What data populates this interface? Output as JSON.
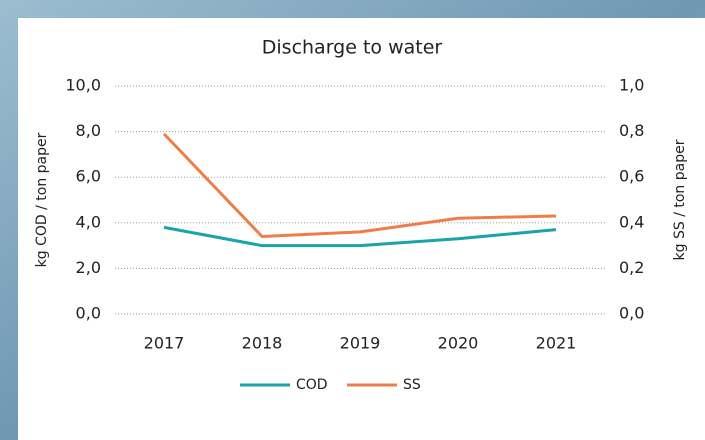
{
  "chart_data": {
    "type": "line",
    "title": "Discharge to water",
    "y_label": "kg COD / ton paper",
    "y2_label": "kg SS / ton paper",
    "categories": [
      "2017",
      "2018",
      "2019",
      "2020",
      "2021"
    ],
    "series": [
      {
        "name": "COD",
        "color": "#1aa3a8",
        "values": [
          3.8,
          3.0,
          3.0,
          3.3,
          3.7
        ]
      },
      {
        "name": "SS",
        "color": "#ef7d4a",
        "axis": "y2",
        "values": [
          0.79,
          0.34,
          0.36,
          0.42,
          0.43
        ]
      }
    ],
    "ylim": [
      0,
      10
    ],
    "yticks": [
      {
        "value": 0,
        "label": "0,0"
      },
      {
        "value": 2,
        "label": "2,0"
      },
      {
        "value": 4,
        "label": "4,0"
      },
      {
        "value": 6,
        "label": "6,0"
      },
      {
        "value": 8,
        "label": "8,0"
      },
      {
        "value": 10,
        "label": "10,0"
      }
    ],
    "y2lim": [
      0,
      1
    ],
    "y2ticks": [
      {
        "value": 0,
        "label": "0,0"
      },
      {
        "value": 0.2,
        "label": "0,2"
      },
      {
        "value": 0.4,
        "label": "0,4"
      },
      {
        "value": 0.6,
        "label": "0,6"
      },
      {
        "value": 0.8,
        "label": "0,8"
      },
      {
        "value": 1,
        "label": "1,0"
      }
    ],
    "grid": true,
    "legend": "bottom"
  }
}
